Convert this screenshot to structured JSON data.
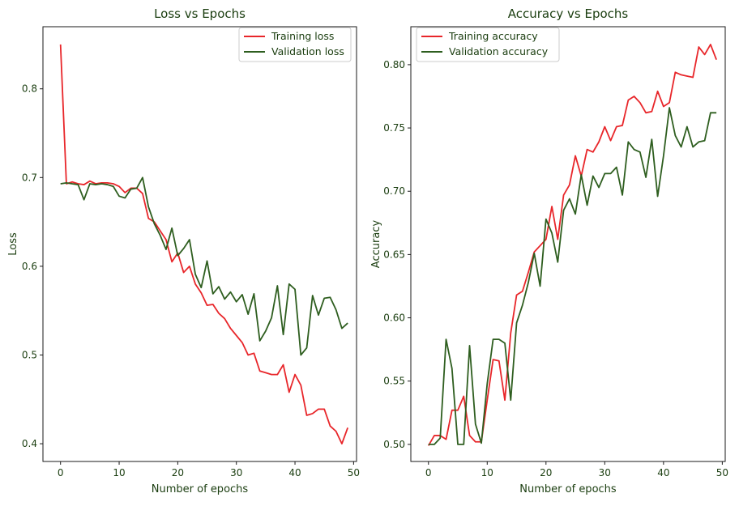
{
  "chart_data": [
    {
      "type": "line",
      "title": "Loss vs Epochs",
      "xlabel": "Number of epochs",
      "ylabel": "Loss",
      "xlim": [
        -3,
        50.5
      ],
      "ylim": [
        0.38,
        0.87
      ],
      "xticks": [
        0,
        10,
        20,
        30,
        40,
        50
      ],
      "yticks": [
        0.4,
        0.5,
        0.6,
        0.7,
        0.8
      ],
      "ytick_labels": [
        "0.4",
        "0.5",
        "0.6",
        "0.7",
        "0.8"
      ],
      "legend_position": "upper right",
      "x": [
        0,
        1,
        2,
        3,
        4,
        5,
        6,
        7,
        8,
        9,
        10,
        11,
        12,
        13,
        14,
        15,
        16,
        17,
        18,
        19,
        20,
        21,
        22,
        23,
        24,
        25,
        26,
        27,
        28,
        29,
        30,
        31,
        32,
        33,
        34,
        35,
        36,
        37,
        38,
        39,
        40,
        41,
        42,
        43,
        44,
        45,
        46,
        47,
        48,
        49
      ],
      "series": [
        {
          "name": "Training loss",
          "color": "#e8262a",
          "values": [
            0.85,
            0.693,
            0.695,
            0.693,
            0.692,
            0.696,
            0.693,
            0.694,
            0.694,
            0.693,
            0.69,
            0.683,
            0.688,
            0.688,
            0.682,
            0.654,
            0.65,
            0.64,
            0.63,
            0.605,
            0.615,
            0.593,
            0.6,
            0.58,
            0.57,
            0.556,
            0.557,
            0.547,
            0.541,
            0.53,
            0.522,
            0.514,
            0.5,
            0.502,
            0.482,
            0.48,
            0.478,
            0.478,
            0.489,
            0.458,
            0.478,
            0.466,
            0.432,
            0.434,
            0.439,
            0.439,
            0.42,
            0.414,
            0.4,
            0.418
          ]
        },
        {
          "name": "Validation loss",
          "color": "#2e5e1f",
          "values": [
            0.693,
            0.694,
            0.693,
            0.692,
            0.675,
            0.693,
            0.692,
            0.693,
            0.692,
            0.69,
            0.679,
            0.677,
            0.687,
            0.688,
            0.7,
            0.667,
            0.648,
            0.635,
            0.619,
            0.643,
            0.612,
            0.62,
            0.63,
            0.591,
            0.576,
            0.606,
            0.569,
            0.577,
            0.563,
            0.571,
            0.56,
            0.568,
            0.546,
            0.569,
            0.516,
            0.527,
            0.542,
            0.578,
            0.523,
            0.58,
            0.574,
            0.5,
            0.508,
            0.567,
            0.545,
            0.564,
            0.565,
            0.551,
            0.53,
            0.536
          ]
        }
      ]
    },
    {
      "type": "line",
      "title": "Accuracy vs Epochs",
      "xlabel": "Number of epochs",
      "ylabel": "Accuracy",
      "xlim": [
        -3,
        50.5
      ],
      "ylim": [
        0.4865,
        0.83
      ],
      "xticks": [
        0,
        10,
        20,
        30,
        40,
        50
      ],
      "yticks": [
        0.5,
        0.55,
        0.6,
        0.65,
        0.7,
        0.75,
        0.8
      ],
      "ytick_labels": [
        "0.50",
        "0.55",
        "0.60",
        "0.65",
        "0.70",
        "0.75",
        "0.80"
      ],
      "legend_position": "upper left",
      "x": [
        0,
        1,
        2,
        3,
        4,
        5,
        6,
        7,
        8,
        9,
        10,
        11,
        12,
        13,
        14,
        15,
        16,
        17,
        18,
        19,
        20,
        21,
        22,
        23,
        24,
        25,
        26,
        27,
        28,
        29,
        30,
        31,
        32,
        33,
        34,
        35,
        36,
        37,
        38,
        39,
        40,
        41,
        42,
        43,
        44,
        45,
        46,
        47,
        48,
        49
      ],
      "series": [
        {
          "name": "Training accuracy",
          "color": "#e8262a",
          "values": [
            0.499,
            0.507,
            0.507,
            0.504,
            0.527,
            0.527,
            0.538,
            0.507,
            0.502,
            0.502,
            0.535,
            0.567,
            0.566,
            0.535,
            0.588,
            0.618,
            0.621,
            0.636,
            0.652,
            0.657,
            0.662,
            0.688,
            0.662,
            0.697,
            0.705,
            0.728,
            0.712,
            0.733,
            0.731,
            0.739,
            0.751,
            0.74,
            0.751,
            0.752,
            0.772,
            0.775,
            0.77,
            0.762,
            0.763,
            0.779,
            0.767,
            0.77,
            0.794,
            0.792,
            0.791,
            0.79,
            0.814,
            0.808,
            0.816,
            0.804
          ]
        },
        {
          "name": "Validation accuracy",
          "color": "#2e5e1f",
          "values": [
            0.5,
            0.5,
            0.505,
            0.583,
            0.56,
            0.5,
            0.5,
            0.578,
            0.516,
            0.501,
            0.548,
            0.583,
            0.583,
            0.58,
            0.535,
            0.596,
            0.61,
            0.628,
            0.651,
            0.625,
            0.678,
            0.667,
            0.644,
            0.685,
            0.694,
            0.682,
            0.713,
            0.689,
            0.712,
            0.703,
            0.714,
            0.714,
            0.719,
            0.697,
            0.739,
            0.733,
            0.731,
            0.711,
            0.741,
            0.696,
            0.728,
            0.766,
            0.744,
            0.735,
            0.751,
            0.735,
            0.739,
            0.74,
            0.762,
            0.762
          ]
        }
      ]
    }
  ]
}
